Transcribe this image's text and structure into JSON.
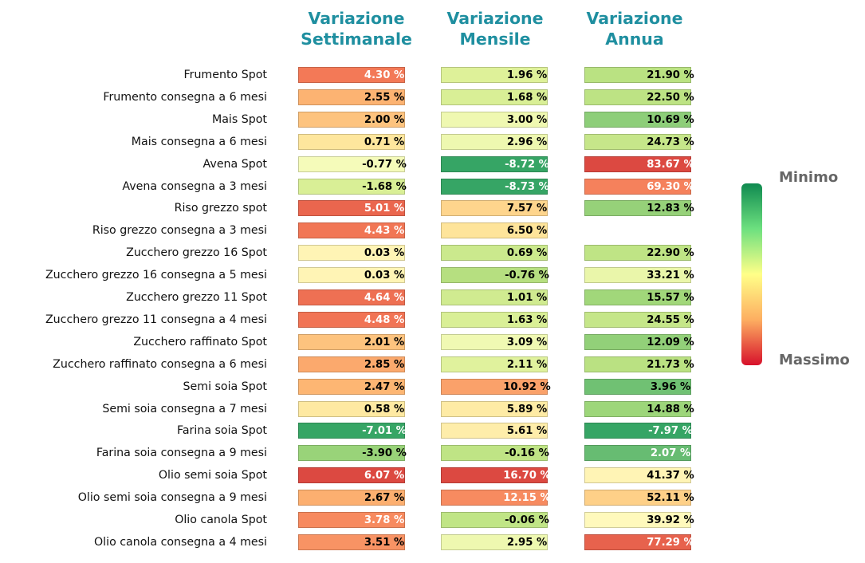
{
  "chart_data": {
    "type": "table",
    "columns": [
      "Variazione Settimanale",
      "Variazione Mensile",
      "Variazione Annua"
    ],
    "column_headers": [
      [
        "Variazione",
        "Settimanale"
      ],
      [
        "Variazione",
        "Mensile"
      ],
      [
        "Variazione",
        "Annua"
      ]
    ],
    "rows": [
      "Frumento Spot",
      "Frumento consegna a 6 mesi",
      "Mais Spot",
      "Mais consegna a 6 mesi",
      "Avena Spot",
      "Avena consegna a 3 mesi",
      "Riso grezzo spot",
      "Riso grezzo consegna a 3 mesi",
      "Zucchero grezzo 16 Spot",
      "Zucchero grezzo 16 consegna a 5 mesi",
      "Zucchero grezzo 11 Spot",
      "Zucchero grezzo 11 consegna a 4 mesi",
      "Zucchero raffinato Spot",
      "Zucchero raffinato consegna a 6 mesi",
      "Semi soia Spot",
      "Semi soia consegna a 7 mesi",
      "Farina soia Spot",
      "Farina soia consegna a 9 mesi",
      "Olio semi soia Spot",
      "Olio semi soia consegna a 9 mesi",
      "Olio canola Spot",
      "Olio canola consegna a 4 mesi"
    ],
    "values": [
      [
        "4.30 %",
        "1.96 %",
        "21.90 %"
      ],
      [
        "2.55 %",
        "1.68 %",
        "22.50 %"
      ],
      [
        "2.00 %",
        "3.00 %",
        "10.69 %"
      ],
      [
        "0.71 %",
        "2.96 %",
        "24.73 %"
      ],
      [
        "-0.77 %",
        "-8.72 %",
        "83.67 %"
      ],
      [
        "-1.68 %",
        "-8.73 %",
        "69.30 %"
      ],
      [
        "5.01 %",
        "7.57 %",
        "12.83 %"
      ],
      [
        "4.43 %",
        "6.50 %",
        ""
      ],
      [
        "0.03 %",
        "0.69 %",
        "22.90 %"
      ],
      [
        "0.03 %",
        "-0.76 %",
        "33.21 %"
      ],
      [
        "4.64 %",
        "1.01 %",
        "15.57 %"
      ],
      [
        "4.48 %",
        "1.63 %",
        "24.55 %"
      ],
      [
        "2.01 %",
        "3.09 %",
        "12.09 %"
      ],
      [
        "2.85 %",
        "2.11 %",
        "21.73 %"
      ],
      [
        "2.47 %",
        "10.92 %",
        "3.96 %"
      ],
      [
        "0.58 %",
        "5.89 %",
        "14.88 %"
      ],
      [
        "-7.01 %",
        "5.61 %",
        "-7.97 %"
      ],
      [
        "-3.90 %",
        "-0.16 %",
        "2.07 %"
      ],
      [
        "6.07 %",
        "16.70 %",
        "41.37 %"
      ],
      [
        "2.67 %",
        "12.15 %",
        "52.11 %"
      ],
      [
        "3.78 %",
        "-0.06 %",
        "39.92 %"
      ],
      [
        "3.51 %",
        "2.95 %",
        "77.29 %"
      ]
    ],
    "colormap": "RdYlGn_r",
    "legend": {
      "top_label": "Minimo",
      "bottom_label": "Massimo",
      "placement": "right"
    },
    "colors": {
      "header": "#1f8fa0",
      "legend_text": "#666666"
    }
  }
}
